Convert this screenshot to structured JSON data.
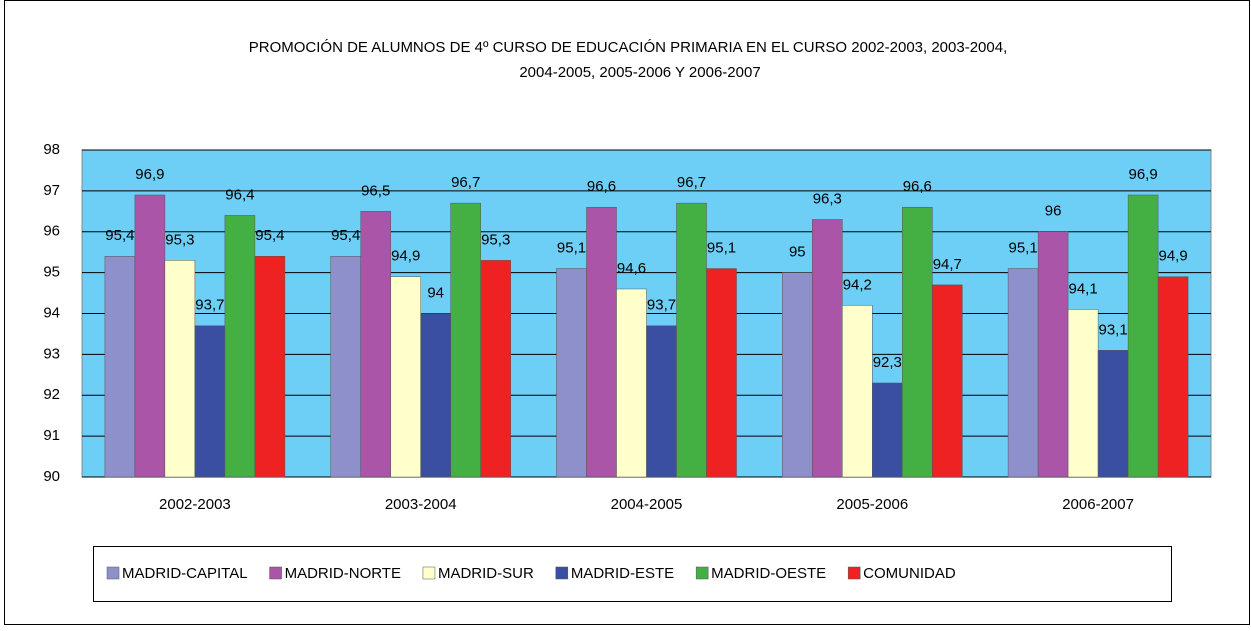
{
  "chart_data": {
    "type": "bar",
    "title": [
      "PROMOCIÓN DE ALUMNOS DE 4º CURSO DE EDUCACIÓN  PRIMARIA EN EL CURSO   2002-2003, 2003-2004,",
      "2004-2005, 2005-2006 Y  2006-2007"
    ],
    "categories": [
      "2002-2003",
      "2003-2004",
      "2004-2005",
      "2005-2006",
      "2006-2007"
    ],
    "series": [
      {
        "name": "MADRID-CAPITAL",
        "color": "#8e90cc",
        "values": [
          95.4,
          95.4,
          95.1,
          95,
          95.1
        ],
        "value_labels": [
          "95,4",
          "95,4",
          "95,1",
          "95",
          "95,1"
        ]
      },
      {
        "name": "MADRID-NORTE",
        "color": "#aa55a8",
        "values": [
          96.9,
          96.5,
          96.6,
          96.3,
          96
        ],
        "value_labels": [
          "96,9",
          "96,5",
          "96,6",
          "96,3",
          "96"
        ]
      },
      {
        "name": "MADRID-SUR",
        "color": "#ffffcc",
        "values": [
          95.3,
          94.9,
          94.6,
          94.2,
          94.1
        ],
        "value_labels": [
          "95,3",
          "94,9",
          "94,6",
          "94,2",
          "94,1"
        ]
      },
      {
        "name": "MADRID-ESTE",
        "color": "#3a4fa2",
        "values": [
          93.7,
          94,
          93.7,
          92.3,
          93.1
        ],
        "value_labels": [
          "93,7",
          "94",
          "93,7",
          "92,3",
          "93,1"
        ]
      },
      {
        "name": "MADRID-OESTE",
        "color": "#44b044",
        "values": [
          96.4,
          96.7,
          96.7,
          96.6,
          96.9
        ],
        "value_labels": [
          "96,4",
          "96,7",
          "96,7",
          "96,6",
          "96,9"
        ]
      },
      {
        "name": "COMUNIDAD",
        "color": "#ee2222",
        "values": [
          95.4,
          95.3,
          95.1,
          94.7,
          94.9
        ],
        "value_labels": [
          "95,4",
          "95,3",
          "95,1",
          "94,7",
          "94,9"
        ]
      }
    ],
    "ylim": [
      90,
      98
    ],
    "yticks": [
      90,
      91,
      92,
      93,
      94,
      95,
      96,
      97,
      98
    ],
    "grid": true,
    "plot_background": "#6dcff6",
    "legend": "bottom"
  }
}
